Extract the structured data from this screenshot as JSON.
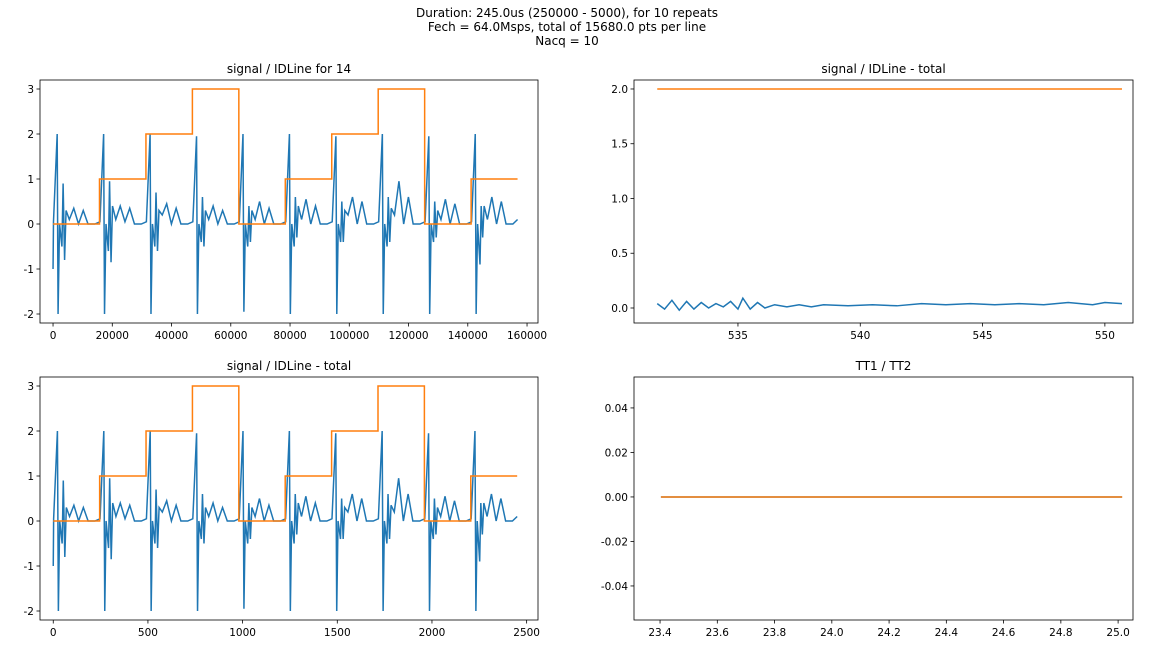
{
  "suptitle": [
    "Duration: 245.0us (250000 - 5000), for 10 repeats",
    "Fech = 64.0Msps, total of 15680.0 pts per line",
    "Nacq = 10"
  ],
  "chart_data": [
    {
      "type": "line",
      "title": "signal / IDLine for 14",
      "xlim": [
        -4400,
        163700
      ],
      "ylim": [
        -2.2,
        3.2
      ],
      "xticks": [
        0,
        20000,
        40000,
        60000,
        80000,
        100000,
        120000,
        140000,
        160000
      ],
      "yticks": [
        -2,
        -1,
        0,
        1,
        2,
        3
      ],
      "series": [
        {
          "color": "#1f77b4",
          "x": [
            0,
            150,
            1400,
            1700,
            2200,
            3000,
            3400,
            3900,
            4400,
            5500,
            7000,
            8600,
            10200,
            11800,
            14100,
            15830,
            17080,
            17380,
            17880,
            18680,
            19080,
            19580,
            20080,
            21180,
            22680,
            24280,
            25880,
            27480,
            29780,
            31510,
            32760,
            33060,
            33560,
            34360,
            34760,
            35260,
            35760,
            36860,
            38360,
            39960,
            41560,
            43160,
            45460,
            47190,
            48440,
            48740,
            49240,
            50040,
            50440,
            50940,
            51440,
            52540,
            54040,
            55640,
            57240,
            58840,
            61140,
            62870,
            64120,
            64420,
            64920,
            65720,
            66120,
            66620,
            67120,
            68220,
            69720,
            71320,
            72920,
            74520,
            76820,
            78550,
            79800,
            80100,
            80600,
            81400,
            81800,
            82300,
            82800,
            83900,
            85400,
            87000,
            88600,
            90200,
            92500,
            94230,
            95480,
            95780,
            96280,
            97080,
            97480,
            97980,
            98480,
            99580,
            101080,
            102680,
            104280,
            105880,
            108180,
            109910,
            111160,
            111460,
            111960,
            112760,
            113160,
            113660,
            114160,
            115260,
            116760,
            118360,
            119960,
            121560,
            123860,
            125590,
            126840,
            127140,
            127640,
            128440,
            128840,
            129340,
            129840,
            130940,
            132440,
            134040,
            135640,
            137240,
            139540,
            141270,
            142520,
            142820,
            143320,
            144120,
            144520,
            145020,
            145520,
            146620,
            148120,
            149720,
            151320,
            152920,
            155220,
            156800
          ],
          "values": [
            -1.0,
            0.05,
            2.0,
            -2.0,
            0.0,
            -0.5,
            0.9,
            -0.8,
            0.3,
            0.1,
            0.35,
            0.0,
            0.3,
            0.0,
            0.0,
            0.05,
            2.0,
            -2.0,
            0.0,
            -0.6,
            0.95,
            -0.85,
            0.4,
            0.1,
            0.4,
            0.05,
            0.35,
            0.0,
            0.0,
            0.05,
            2.0,
            -2.0,
            0.0,
            -0.5,
            0.7,
            -0.6,
            0.3,
            0.2,
            0.45,
            0.0,
            0.35,
            0.0,
            0.0,
            0.05,
            1.95,
            -2.0,
            0.0,
            -0.4,
            0.6,
            -0.5,
            0.3,
            0.1,
            0.4,
            0.0,
            0.3,
            0.0,
            0.0,
            0.05,
            2.0,
            -1.95,
            0.0,
            -0.5,
            0.4,
            -0.4,
            0.3,
            0.1,
            0.5,
            0.0,
            0.35,
            0.0,
            0.0,
            0.05,
            2.0,
            -2.0,
            0.0,
            -0.5,
            0.6,
            -0.3,
            0.4,
            0.1,
            0.55,
            0.0,
            0.4,
            0.0,
            0.0,
            0.05,
            1.95,
            -2.0,
            0.0,
            -0.4,
            0.5,
            -0.4,
            0.3,
            0.2,
            0.6,
            0.0,
            0.5,
            0.0,
            0.0,
            0.05,
            2.0,
            -2.0,
            0.0,
            -0.5,
            0.6,
            -0.4,
            0.35,
            0.2,
            0.95,
            0.0,
            0.6,
            0.0,
            0.0,
            0.05,
            1.95,
            -2.0,
            0.0,
            -0.4,
            0.5,
            -0.3,
            0.3,
            0.1,
            0.55,
            0.0,
            0.45,
            0.0,
            0.0,
            0.05,
            2.0,
            -2.0,
            0.0,
            -0.9,
            0.4,
            -0.3,
            0.4,
            0.1,
            0.6,
            0.0,
            0.5,
            0.0,
            0.0,
            0.1
          ]
        },
        {
          "color": "#ff7f0e",
          "x": [
            0,
            15680,
            15680,
            31360,
            31360,
            47040,
            47040,
            62720,
            62720,
            78400,
            78400,
            94080,
            94080,
            109760,
            109760,
            125440,
            125440,
            141120,
            141120,
            156800
          ],
          "values": [
            0,
            0,
            1,
            1,
            2,
            2,
            3,
            3,
            0,
            0,
            1,
            1,
            2,
            2,
            3,
            3,
            0,
            0,
            1,
            1
          ]
        }
      ]
    },
    {
      "type": "line",
      "title": "signal / IDLine - total",
      "xlim": [
        530.75,
        551.15
      ],
      "ylim": [
        -0.137,
        2.082
      ],
      "xticks": [
        535,
        540,
        545,
        550
      ],
      "yticks": [
        {
          "value": 0,
          "label": "0.0"
        },
        0.5,
        {
          "value": 1,
          "label": "1.0"
        },
        1.5,
        {
          "value": 2,
          "label": "2.0"
        }
      ],
      "series": [
        {
          "color": "#1f77b4",
          "x": [
            531.7,
            532.0,
            532.3,
            532.6,
            532.9,
            533.2,
            533.5,
            533.8,
            534.1,
            534.4,
            534.7,
            535.0,
            535.2,
            535.5,
            535.8,
            536.1,
            536.5,
            537.0,
            537.5,
            538.0,
            538.5,
            539.5,
            540.5,
            541.5,
            542.5,
            543.5,
            544.5,
            545.5,
            546.5,
            547.5,
            548.5,
            549.5,
            550.0,
            550.7
          ],
          "values": [
            0.04,
            -0.01,
            0.07,
            -0.02,
            0.06,
            -0.01,
            0.05,
            0.0,
            0.04,
            0.01,
            0.06,
            -0.01,
            0.09,
            -0.01,
            0.05,
            0.0,
            0.03,
            0.01,
            0.03,
            0.01,
            0.03,
            0.02,
            0.03,
            0.02,
            0.04,
            0.03,
            0.04,
            0.03,
            0.04,
            0.03,
            0.05,
            0.03,
            0.05,
            0.04
          ]
        },
        {
          "color": "#ff7f0e",
          "x": [
            531.7,
            550.7
          ],
          "values": [
            2,
            2
          ]
        }
      ]
    },
    {
      "type": "line",
      "title": "signal / IDLine - total",
      "xlim": [
        -70,
        2560
      ],
      "ylim": [
        -2.2,
        3.2
      ],
      "xticks": [
        0,
        500,
        1000,
        1500,
        2000,
        2500
      ],
      "yticks": [
        -2,
        -1,
        0,
        1,
        2,
        3
      ],
      "series": [
        {
          "color": "#1f77b4",
          "x": [
            0,
            2,
            22,
            27,
            34,
            47,
            53,
            61,
            69,
            86,
            109,
            134,
            159,
            184,
            220,
            247,
            267,
            272,
            279,
            292,
            298,
            306,
            314,
            331,
            354,
            379,
            404,
            429,
            465,
            492,
            512,
            517,
            524,
            537,
            543,
            551,
            559,
            576,
            599,
            624,
            649,
            674,
            710,
            737,
            757,
            762,
            769,
            782,
            788,
            796,
            804,
            821,
            844,
            869,
            894,
            919,
            955,
            982,
            1002,
            1007,
            1014,
            1027,
            1033,
            1041,
            1049,
            1066,
            1089,
            1114,
            1139,
            1164,
            1200,
            1227,
            1247,
            1252,
            1259,
            1272,
            1278,
            1286,
            1294,
            1311,
            1334,
            1359,
            1384,
            1409,
            1445,
            1472,
            1492,
            1497,
            1504,
            1517,
            1523,
            1531,
            1539,
            1556,
            1579,
            1604,
            1629,
            1654,
            1690,
            1717,
            1737,
            1742,
            1749,
            1762,
            1768,
            1776,
            1784,
            1801,
            1824,
            1849,
            1874,
            1899,
            1935,
            1962,
            1982,
            1987,
            1994,
            2007,
            2013,
            2021,
            2029,
            2046,
            2069,
            2094,
            2119,
            2144,
            2180,
            2207,
            2227,
            2232,
            2239,
            2252,
            2258,
            2266,
            2274,
            2291,
            2314,
            2339,
            2364,
            2389,
            2425,
            2450
          ],
          "values": [
            -1.0,
            0.05,
            2.0,
            -2.0,
            0.0,
            -0.5,
            0.9,
            -0.8,
            0.3,
            0.1,
            0.35,
            0.0,
            0.3,
            0.0,
            0.0,
            0.05,
            2.0,
            -2.0,
            0.0,
            -0.6,
            0.95,
            -0.85,
            0.4,
            0.1,
            0.4,
            0.05,
            0.35,
            0.0,
            0.0,
            0.05,
            2.0,
            -2.0,
            0.0,
            -0.5,
            0.7,
            -0.6,
            0.3,
            0.2,
            0.45,
            0.0,
            0.35,
            0.0,
            0.0,
            0.05,
            1.95,
            -2.0,
            0.0,
            -0.4,
            0.6,
            -0.5,
            0.3,
            0.1,
            0.4,
            0.0,
            0.3,
            0.0,
            0.0,
            0.05,
            2.0,
            -1.95,
            0.0,
            -0.5,
            0.4,
            -0.4,
            0.3,
            0.1,
            0.5,
            0.0,
            0.35,
            0.0,
            0.0,
            0.05,
            2.0,
            -2.0,
            0.0,
            -0.5,
            0.6,
            -0.3,
            0.4,
            0.1,
            0.55,
            0.0,
            0.4,
            0.0,
            0.0,
            0.05,
            1.95,
            -2.0,
            0.0,
            -0.4,
            0.5,
            -0.4,
            0.3,
            0.2,
            0.6,
            0.0,
            0.5,
            0.0,
            0.0,
            0.05,
            2.0,
            -2.0,
            0.0,
            -0.5,
            0.6,
            -0.4,
            0.35,
            0.2,
            0.95,
            0.0,
            0.6,
            0.0,
            0.0,
            0.05,
            1.95,
            -2.0,
            0.0,
            -0.4,
            0.5,
            -0.3,
            0.3,
            0.1,
            0.55,
            0.0,
            0.45,
            0.0,
            0.0,
            0.05,
            2.0,
            -2.0,
            0.0,
            -0.9,
            0.4,
            -0.3,
            0.4,
            0.1,
            0.6,
            0.0,
            0.5,
            0.0,
            0.0,
            0.1
          ]
        },
        {
          "color": "#ff7f0e",
          "x": [
            0,
            245,
            245,
            490,
            490,
            735,
            735,
            980,
            980,
            1225,
            1225,
            1470,
            1470,
            1715,
            1715,
            1960,
            1960,
            2205,
            2205,
            2450
          ],
          "values": [
            0,
            0,
            1,
            1,
            2,
            2,
            3,
            3,
            0,
            0,
            1,
            1,
            2,
            2,
            3,
            3,
            0,
            0,
            1,
            1
          ]
        }
      ]
    },
    {
      "type": "line",
      "title": "TT1 / TT2",
      "xlim": [
        23.309,
        25.052
      ],
      "ylim": [
        -0.0553,
        0.0539
      ],
      "xticks": [
        23.4,
        23.6,
        23.8,
        {
          "value": 24,
          "label": "24.0"
        },
        24.2,
        24.4,
        24.6,
        24.8,
        {
          "value": 25,
          "label": "25.0"
        }
      ],
      "yticks": [
        -0.04,
        -0.02,
        {
          "value": 0,
          "label": "0.00"
        },
        0.02,
        0.04
      ],
      "series": [
        {
          "color": "#1f77b4",
          "x": [
            23.403,
            25.014
          ],
          "values": [
            0,
            0
          ]
        },
        {
          "color": "#ff7f0e",
          "x": [
            23.403,
            25.014
          ],
          "values": [
            0,
            0
          ]
        }
      ]
    }
  ]
}
